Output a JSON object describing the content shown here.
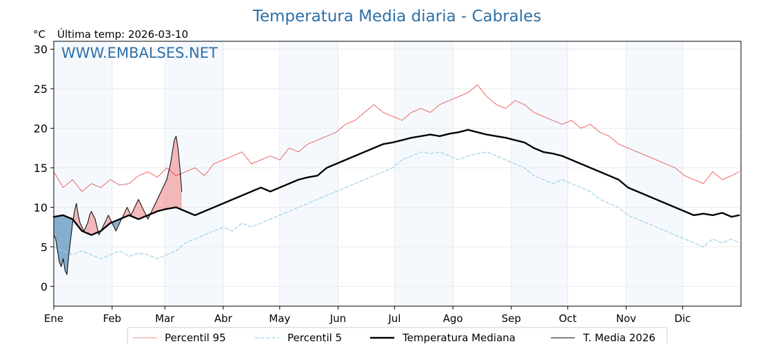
{
  "chart_data": {
    "type": "line",
    "title": "Temperatura Media diaria - Cabrales",
    "unit_label": "°C",
    "last_temp_label": "Última temp: 2026-03-10",
    "watermark": "WWW.EMBALSES.NET",
    "xlabels": [
      "Ene",
      "Feb",
      "Mar",
      "Abr",
      "May",
      "Jun",
      "Jul",
      "Ago",
      "Sep",
      "Oct",
      "Nov",
      "Dic"
    ],
    "month_start_day": [
      0,
      31,
      59,
      90,
      120,
      151,
      181,
      212,
      243,
      273,
      304,
      334
    ],
    "days_in_year": 365,
    "ylim": [
      -2.5,
      31
    ],
    "yticks": [
      0,
      5,
      10,
      15,
      20,
      25,
      30
    ],
    "grid": true,
    "shaded_months": [
      "Ene",
      "Mar",
      "May",
      "Jul",
      "Sep",
      "Nov"
    ],
    "legend_position": "bottom-center",
    "series": [
      {
        "name": "Percentil 95",
        "style": "dotted",
        "color": "#e8191b",
        "points": [
          [
            0,
            14.5
          ],
          [
            5,
            12.5
          ],
          [
            10,
            13.5
          ],
          [
            15,
            12.0
          ],
          [
            20,
            13.0
          ],
          [
            25,
            12.5
          ],
          [
            30,
            13.5
          ],
          [
            35,
            12.8
          ],
          [
            40,
            13.0
          ],
          [
            45,
            14.0
          ],
          [
            50,
            14.5
          ],
          [
            55,
            13.8
          ],
          [
            60,
            15.0
          ],
          [
            65,
            14.0
          ],
          [
            70,
            14.5
          ],
          [
            75,
            15.0
          ],
          [
            80,
            14.0
          ],
          [
            85,
            15.5
          ],
          [
            90,
            16.0
          ],
          [
            95,
            16.5
          ],
          [
            100,
            17.0
          ],
          [
            105,
            15.5
          ],
          [
            110,
            16.0
          ],
          [
            115,
            16.5
          ],
          [
            120,
            16.0
          ],
          [
            125,
            17.5
          ],
          [
            130,
            17.0
          ],
          [
            135,
            18.0
          ],
          [
            140,
            18.5
          ],
          [
            145,
            19.0
          ],
          [
            150,
            19.5
          ],
          [
            155,
            20.5
          ],
          [
            160,
            21.0
          ],
          [
            165,
            22.0
          ],
          [
            170,
            23.0
          ],
          [
            175,
            22.0
          ],
          [
            180,
            21.5
          ],
          [
            185,
            21.0
          ],
          [
            190,
            22.0
          ],
          [
            195,
            22.5
          ],
          [
            200,
            22.0
          ],
          [
            205,
            23.0
          ],
          [
            210,
            23.5
          ],
          [
            215,
            24.0
          ],
          [
            220,
            24.5
          ],
          [
            225,
            25.5
          ],
          [
            230,
            24.0
          ],
          [
            235,
            23.0
          ],
          [
            240,
            22.5
          ],
          [
            245,
            23.5
          ],
          [
            250,
            23.0
          ],
          [
            255,
            22.0
          ],
          [
            260,
            21.5
          ],
          [
            265,
            21.0
          ],
          [
            270,
            20.5
          ],
          [
            275,
            21.0
          ],
          [
            280,
            20.0
          ],
          [
            285,
            20.5
          ],
          [
            290,
            19.5
          ],
          [
            295,
            19.0
          ],
          [
            300,
            18.0
          ],
          [
            305,
            17.5
          ],
          [
            310,
            17.0
          ],
          [
            315,
            16.5
          ],
          [
            320,
            16.0
          ],
          [
            325,
            15.5
          ],
          [
            330,
            15.0
          ],
          [
            335,
            14.0
          ],
          [
            340,
            13.5
          ],
          [
            345,
            13.0
          ],
          [
            350,
            14.5
          ],
          [
            355,
            13.5
          ],
          [
            360,
            14.0
          ],
          [
            364,
            14.5
          ]
        ]
      },
      {
        "name": "Percentil 5",
        "style": "dashed",
        "color": "#9cd3e3",
        "points": [
          [
            0,
            5.0
          ],
          [
            5,
            4.5
          ],
          [
            10,
            4.0
          ],
          [
            15,
            4.5
          ],
          [
            20,
            4.0
          ],
          [
            25,
            3.5
          ],
          [
            30,
            4.0
          ],
          [
            35,
            4.5
          ],
          [
            40,
            3.8
          ],
          [
            45,
            4.2
          ],
          [
            50,
            4.0
          ],
          [
            55,
            3.5
          ],
          [
            60,
            4.0
          ],
          [
            65,
            4.5
          ],
          [
            70,
            5.5
          ],
          [
            75,
            6.0
          ],
          [
            80,
            6.5
          ],
          [
            85,
            7.0
          ],
          [
            90,
            7.5
          ],
          [
            95,
            7.0
          ],
          [
            100,
            8.0
          ],
          [
            105,
            7.5
          ],
          [
            110,
            8.0
          ],
          [
            115,
            8.5
          ],
          [
            120,
            9.0
          ],
          [
            125,
            9.5
          ],
          [
            130,
            10.0
          ],
          [
            135,
            10.5
          ],
          [
            140,
            11.0
          ],
          [
            145,
            11.5
          ],
          [
            150,
            12.0
          ],
          [
            155,
            12.5
          ],
          [
            160,
            13.0
          ],
          [
            165,
            13.5
          ],
          [
            170,
            14.0
          ],
          [
            175,
            14.5
          ],
          [
            180,
            15.0
          ],
          [
            185,
            16.0
          ],
          [
            190,
            16.5
          ],
          [
            195,
            17.0
          ],
          [
            200,
            16.8
          ],
          [
            205,
            17.0
          ],
          [
            210,
            16.5
          ],
          [
            215,
            16.0
          ],
          [
            220,
            16.5
          ],
          [
            225,
            16.8
          ],
          [
            230,
            17.0
          ],
          [
            235,
            16.5
          ],
          [
            240,
            16.0
          ],
          [
            245,
            15.5
          ],
          [
            250,
            15.0
          ],
          [
            255,
            14.0
          ],
          [
            260,
            13.5
          ],
          [
            265,
            13.0
          ],
          [
            270,
            13.5
          ],
          [
            275,
            13.0
          ],
          [
            280,
            12.5
          ],
          [
            285,
            12.0
          ],
          [
            290,
            11.0
          ],
          [
            295,
            10.5
          ],
          [
            300,
            10.0
          ],
          [
            305,
            9.0
          ],
          [
            310,
            8.5
          ],
          [
            315,
            8.0
          ],
          [
            320,
            7.5
          ],
          [
            325,
            7.0
          ],
          [
            330,
            6.5
          ],
          [
            335,
            6.0
          ],
          [
            340,
            5.5
          ],
          [
            345,
            5.0
          ],
          [
            350,
            6.0
          ],
          [
            355,
            5.5
          ],
          [
            360,
            6.0
          ],
          [
            364,
            5.5
          ]
        ]
      },
      {
        "name": "Temperatura Mediana",
        "style": "solid-thick",
        "color": "#000000",
        "points": [
          [
            0,
            8.8
          ],
          [
            5,
            9.0
          ],
          [
            10,
            8.5
          ],
          [
            15,
            7.0
          ],
          [
            20,
            6.5
          ],
          [
            25,
            7.0
          ],
          [
            30,
            8.0
          ],
          [
            35,
            8.5
          ],
          [
            40,
            9.0
          ],
          [
            45,
            8.5
          ],
          [
            50,
            9.0
          ],
          [
            55,
            9.5
          ],
          [
            60,
            9.8
          ],
          [
            65,
            10.0
          ],
          [
            70,
            9.5
          ],
          [
            75,
            9.0
          ],
          [
            80,
            9.5
          ],
          [
            85,
            10.0
          ],
          [
            90,
            10.5
          ],
          [
            95,
            11.0
          ],
          [
            100,
            11.5
          ],
          [
            105,
            12.0
          ],
          [
            110,
            12.5
          ],
          [
            115,
            12.0
          ],
          [
            120,
            12.5
          ],
          [
            125,
            13.0
          ],
          [
            130,
            13.5
          ],
          [
            135,
            13.8
          ],
          [
            140,
            14.0
          ],
          [
            145,
            15.0
          ],
          [
            150,
            15.5
          ],
          [
            155,
            16.0
          ],
          [
            160,
            16.5
          ],
          [
            165,
            17.0
          ],
          [
            170,
            17.5
          ],
          [
            175,
            18.0
          ],
          [
            180,
            18.2
          ],
          [
            185,
            18.5
          ],
          [
            190,
            18.8
          ],
          [
            195,
            19.0
          ],
          [
            200,
            19.2
          ],
          [
            205,
            19.0
          ],
          [
            210,
            19.3
          ],
          [
            215,
            19.5
          ],
          [
            220,
            19.8
          ],
          [
            225,
            19.5
          ],
          [
            230,
            19.2
          ],
          [
            235,
            19.0
          ],
          [
            240,
            18.8
          ],
          [
            245,
            18.5
          ],
          [
            250,
            18.2
          ],
          [
            255,
            17.5
          ],
          [
            260,
            17.0
          ],
          [
            265,
            16.8
          ],
          [
            270,
            16.5
          ],
          [
            275,
            16.0
          ],
          [
            280,
            15.5
          ],
          [
            285,
            15.0
          ],
          [
            290,
            14.5
          ],
          [
            295,
            14.0
          ],
          [
            300,
            13.5
          ],
          [
            305,
            12.5
          ],
          [
            310,
            12.0
          ],
          [
            315,
            11.5
          ],
          [
            320,
            11.0
          ],
          [
            325,
            10.5
          ],
          [
            330,
            10.0
          ],
          [
            335,
            9.5
          ],
          [
            340,
            9.0
          ],
          [
            345,
            9.2
          ],
          [
            350,
            9.0
          ],
          [
            355,
            9.3
          ],
          [
            360,
            8.8
          ],
          [
            364,
            9.0
          ]
        ]
      },
      {
        "name": "T. Media 2026",
        "style": "solid-thin",
        "color": "#000000",
        "points": [
          [
            0,
            6.5
          ],
          [
            1,
            6.0
          ],
          [
            2,
            4.5
          ],
          [
            3,
            3.0
          ],
          [
            4,
            2.5
          ],
          [
            5,
            3.5
          ],
          [
            6,
            2.0
          ],
          [
            7,
            1.5
          ],
          [
            8,
            4.0
          ],
          [
            9,
            6.0
          ],
          [
            10,
            8.0
          ],
          [
            11,
            9.5
          ],
          [
            12,
            10.5
          ],
          [
            13,
            9.0
          ],
          [
            14,
            8.0
          ],
          [
            15,
            7.5
          ],
          [
            16,
            7.0
          ],
          [
            17,
            7.5
          ],
          [
            18,
            8.0
          ],
          [
            19,
            9.0
          ],
          [
            20,
            9.5
          ],
          [
            21,
            9.0
          ],
          [
            22,
            8.5
          ],
          [
            23,
            7.5
          ],
          [
            24,
            6.5
          ],
          [
            25,
            7.0
          ],
          [
            26,
            7.5
          ],
          [
            27,
            8.0
          ],
          [
            28,
            8.5
          ],
          [
            29,
            9.0
          ],
          [
            30,
            8.5
          ],
          [
            31,
            8.0
          ],
          [
            32,
            7.5
          ],
          [
            33,
            7.0
          ],
          [
            34,
            7.5
          ],
          [
            35,
            8.0
          ],
          [
            36,
            8.5
          ],
          [
            37,
            9.0
          ],
          [
            38,
            9.5
          ],
          [
            39,
            10.0
          ],
          [
            40,
            9.5
          ],
          [
            41,
            9.0
          ],
          [
            42,
            9.5
          ],
          [
            43,
            10.0
          ],
          [
            44,
            10.5
          ],
          [
            45,
            11.0
          ],
          [
            46,
            10.5
          ],
          [
            47,
            10.0
          ],
          [
            48,
            9.5
          ],
          [
            49,
            9.0
          ],
          [
            50,
            8.5
          ],
          [
            51,
            9.0
          ],
          [
            52,
            9.5
          ],
          [
            53,
            10.0
          ],
          [
            54,
            10.5
          ],
          [
            55,
            11.0
          ],
          [
            56,
            11.5
          ],
          [
            57,
            12.0
          ],
          [
            58,
            12.5
          ],
          [
            59,
            13.0
          ],
          [
            60,
            13.5
          ],
          [
            61,
            14.5
          ],
          [
            62,
            15.5
          ],
          [
            63,
            17.0
          ],
          [
            64,
            18.5
          ],
          [
            65,
            19.0
          ],
          [
            66,
            17.5
          ],
          [
            67,
            15.0
          ],
          [
            68,
            12.0
          ]
        ]
      }
    ]
  }
}
